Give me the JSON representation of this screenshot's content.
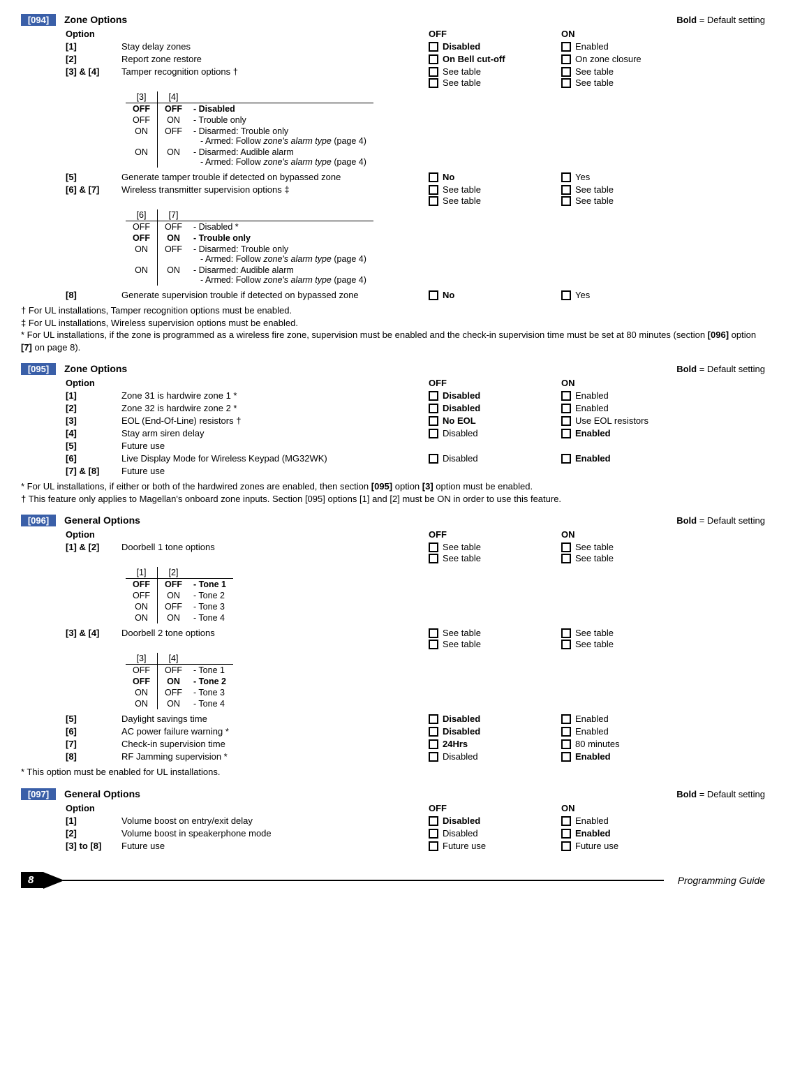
{
  "page_number": "8",
  "footer_title": "Programming Guide",
  "default_setting_label": "Bold",
  "default_setting_text": " = Default setting",
  "col_headers": {
    "option": "Option",
    "off": "OFF",
    "on": "ON"
  },
  "sections": [
    {
      "tag": "[094]",
      "title": "Zone Options",
      "rows": [
        {
          "id": "[1]",
          "desc": "Stay delay zones",
          "off": "Disabled",
          "on": "Enabled",
          "off_bold": true
        },
        {
          "id": "[2]",
          "desc": "Report zone restore",
          "off": "On Bell cut-off",
          "on": "On zone closure",
          "off_bold": true
        },
        {
          "id": "[3] & [4]",
          "desc": "Tamper recognition options †",
          "off": "See table",
          "on": "See table",
          "stack2": true,
          "sub": {
            "head": [
              "[3]",
              "[4]"
            ],
            "rows": [
              {
                "a": "OFF",
                "b": "OFF",
                "d": "- Disabled",
                "bold": true
              },
              {
                "a": "OFF",
                "b": "ON",
                "d": "- Trouble only"
              },
              {
                "a": "ON",
                "b": "OFF",
                "d": "- Disarmed: Trouble only",
                "d2": "- Armed: Follow <em>zone's alarm type</em> (page 4)"
              },
              {
                "a": "ON",
                "b": "ON",
                "d": "- Disarmed: Audible alarm",
                "d2": "- Armed: Follow <em>zone's alarm type</em> (page 4)"
              }
            ]
          }
        },
        {
          "id": "[5]",
          "desc": "Generate tamper trouble if detected on bypassed zone",
          "off": "No",
          "on": "Yes",
          "off_bold": true
        },
        {
          "id": "[6] & [7]",
          "desc": "Wireless transmitter supervision options ‡",
          "off": "See table",
          "on": "See table",
          "stack2": true,
          "sub": {
            "head": [
              "[6]",
              "[7]"
            ],
            "rows": [
              {
                "a": "OFF",
                "b": "OFF",
                "d": "- Disabled *"
              },
              {
                "a": "OFF",
                "b": "ON",
                "d": "- Trouble only",
                "bold": true
              },
              {
                "a": "ON",
                "b": "OFF",
                "d": "- Disarmed: Trouble only",
                "d2": "- Armed: Follow <em>zone's alarm type</em> (page 4)"
              },
              {
                "a": "ON",
                "b": "ON",
                "d": "- Disarmed: Audible alarm",
                "d2": "- Armed: Follow <em>zone's alarm type</em> (page 4)"
              }
            ]
          }
        },
        {
          "id": "[8]",
          "desc": "Generate supervision trouble if detected on bypassed zone",
          "off": "No",
          "on": "Yes",
          "off_bold": true
        }
      ],
      "footnotes": "† For UL installations, Tamper recognition options must be enabled.<br>‡ For UL installations, Wireless supervision options must be enabled.<br>* For UL installations, if the zone is programmed as a wireless fire zone, supervision must be enabled and the check-in supervision time must be set at 80 minutes (section <b>[096]</b> option <b>[7]</b> on page 8)."
    },
    {
      "tag": "[095]",
      "title": "Zone Options",
      "rows": [
        {
          "id": "[1]",
          "desc": "Zone 31 is hardwire zone 1 *",
          "off": "Disabled",
          "on": "Enabled",
          "off_bold": true
        },
        {
          "id": "[2]",
          "desc": "Zone 32 is hardwire zone 2 *",
          "off": "Disabled",
          "on": "Enabled",
          "off_bold": true
        },
        {
          "id": "[3]",
          "desc": "EOL (End-Of-Line) resistors †",
          "off": "No EOL",
          "on": "Use EOL resistors",
          "off_bold": true
        },
        {
          "id": "[4]",
          "desc": "Stay arm siren delay",
          "off": "Disabled",
          "on": "Enabled",
          "on_bold": true
        },
        {
          "id": "[5]",
          "desc": "Future use",
          "no_off": true,
          "no_on": true
        },
        {
          "id": "[6]",
          "desc": "Live Display Mode for Wireless Keypad (MG32WK)",
          "off": "Disabled",
          "on": "Enabled",
          "on_bold": true
        },
        {
          "id": "[7] & [8]",
          "desc": "Future use",
          "no_off": true,
          "no_on": true
        }
      ],
      "footnotes": "* For UL installations, if either or both of the hardwired zones are enabled, then section <b>[095]</b> option <b>[3]</b> option must be enabled.<br>† This feature only applies to Magellan's onboard zone inputs. Section [095] options [1] and [2] must be ON in order to use this feature."
    },
    {
      "tag": "[096]",
      "title": "General Options",
      "rows": [
        {
          "id": "[1] & [2]",
          "desc": "Doorbell 1 tone options",
          "off": "See table",
          "on": "See table",
          "stack2": true,
          "sub": {
            "head": [
              "[1]",
              "[2]"
            ],
            "rows": [
              {
                "a": "OFF",
                "b": "OFF",
                "d": "- Tone 1",
                "bold": true
              },
              {
                "a": "OFF",
                "b": "ON",
                "d": "- Tone 2"
              },
              {
                "a": "ON",
                "b": "OFF",
                "d": "- Tone 3"
              },
              {
                "a": "ON",
                "b": "ON",
                "d": "- Tone 4"
              }
            ]
          }
        },
        {
          "id": "[3] & [4]",
          "desc": "Doorbell 2 tone options",
          "off": "See table",
          "on": "See table",
          "stack2": true,
          "sub": {
            "head": [
              "[3]",
              "[4]"
            ],
            "rows": [
              {
                "a": "OFF",
                "b": "OFF",
                "d": "- Tone 1"
              },
              {
                "a": "OFF",
                "b": "ON",
                "d": "- Tone 2",
                "bold": true
              },
              {
                "a": "ON",
                "b": "OFF",
                "d": "- Tone 3"
              },
              {
                "a": "ON",
                "b": "ON",
                "d": "- Tone 4"
              }
            ]
          }
        },
        {
          "id": "[5]",
          "desc": "Daylight savings time",
          "off": "Disabled",
          "on": "Enabled",
          "off_bold": true
        },
        {
          "id": "[6]",
          "desc": "AC power failure warning *",
          "off": "Disabled",
          "on": "Enabled",
          "off_bold": true
        },
        {
          "id": "[7]",
          "desc": "Check-in supervision time",
          "off": "24Hrs",
          "on": "80 minutes",
          "off_bold": true
        },
        {
          "id": "[8]",
          "desc": "RF Jamming supervision *",
          "off": "Disabled",
          "on": "Enabled",
          "on_bold": true
        }
      ],
      "footnotes": "* This option must be enabled for UL installations."
    },
    {
      "tag": "[097]",
      "title": "General Options",
      "rows": [
        {
          "id": "[1]",
          "desc": "Volume boost on entry/exit delay",
          "off": "Disabled",
          "on": "Enabled",
          "off_bold": true
        },
        {
          "id": "[2]",
          "desc": "Volume boost in speakerphone mode",
          "off": "Disabled",
          "on": "Enabled",
          "on_bold": true
        },
        {
          "id": "[3] to [8]",
          "desc": "Future use",
          "off": "Future use",
          "on": "Future use"
        }
      ]
    }
  ]
}
